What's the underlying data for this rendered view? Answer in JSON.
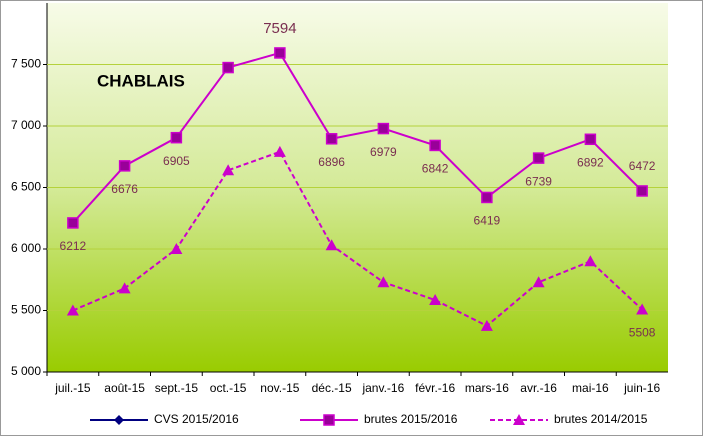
{
  "chart_data": {
    "type": "line",
    "title": "CHABLAIS",
    "categories": [
      "juil.-15",
      "août-15",
      "sept.-15",
      "oct.-15",
      "nov.-15",
      "déc.-15",
      "janv.-16",
      "févr.-16",
      "mars-16",
      "avr.-16",
      "mai-16",
      "juin-16"
    ],
    "series": [
      {
        "name": "CVS 2015/2016",
        "color": "#000080",
        "values": [
          null,
          null,
          null,
          null,
          null,
          null,
          null,
          null,
          null,
          null,
          null,
          null
        ]
      },
      {
        "name": "brutes 2015/2016",
        "color": "#cc00cc",
        "values": [
          6212,
          6676,
          6905,
          7475,
          7594,
          6896,
          6979,
          6842,
          6419,
          6739,
          6892,
          6472
        ],
        "value_labels": [
          "6212",
          "6676",
          "6905",
          null,
          "7594",
          "6896",
          "6979",
          "6842",
          "6419",
          "6739",
          "6892",
          "6472"
        ]
      },
      {
        "name": "brutes 2014/2015",
        "color": "#cc00cc",
        "values": [
          5500,
          5680,
          6000,
          6640,
          6790,
          6030,
          5730,
          5585,
          5375,
          5730,
          5900,
          5508
        ],
        "value_labels": [
          null,
          null,
          null,
          null,
          null,
          null,
          null,
          null,
          null,
          null,
          null,
          "5508"
        ]
      }
    ],
    "ylim": [
      5000,
      8000
    ],
    "yticks": [
      {
        "value": 5000,
        "label": "5 000"
      },
      {
        "value": 5500,
        "label": "5 500"
      },
      {
        "value": 6000,
        "label": "6 000"
      },
      {
        "value": 6500,
        "label": "6 500"
      },
      {
        "value": 7000,
        "label": "7 000"
      },
      {
        "value": 7500,
        "label": "7 500"
      }
    ],
    "grid": true,
    "legend": "bottom"
  }
}
